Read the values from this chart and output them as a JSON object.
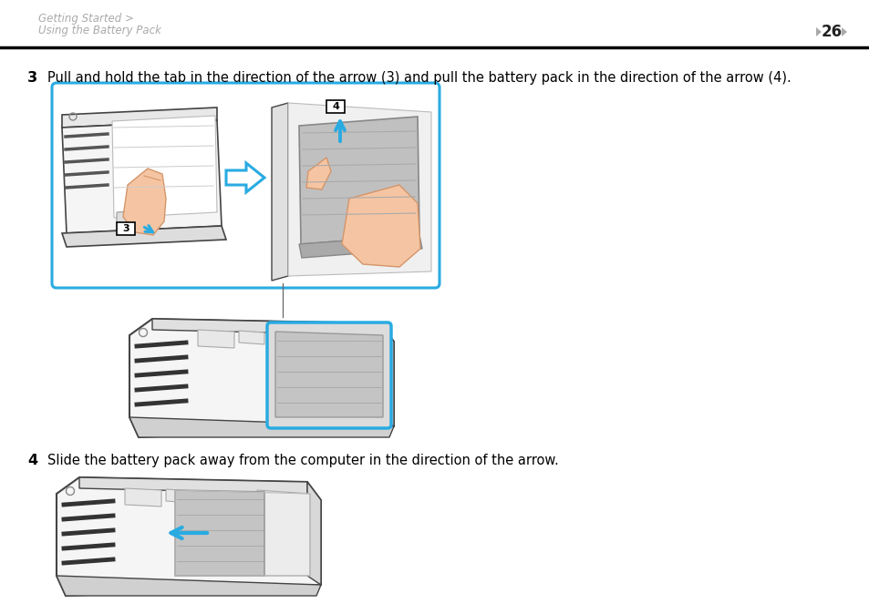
{
  "bg_color": "#ffffff",
  "header_line1": "Getting Started >",
  "header_line2": "Using the Battery Pack",
  "header_color": "#aaaaaa",
  "page_number": "26",
  "divider_color": "#000000",
  "step3_num": "3",
  "step3_text": "Pull and hold the tab in the direction of the arrow (3) and pull the battery pack in the direction of the arrow (4).",
  "step4_num": "4",
  "step4_text": "Slide the battery pack away from the computer in the direction of the arrow.",
  "text_color": "#000000",
  "text_fontsize": 10.5,
  "header_fontsize": 8.5,
  "cyan": "#29abe2",
  "finger": "#f5c5a3",
  "finger_edge": "#d4956a",
  "laptop_fill": "#f5f5f5",
  "laptop_edge": "#444444",
  "battery_fill": "#c8c8c8",
  "battery_edge": "#777777",
  "vent_color": "#333333",
  "gray_line": "#999999"
}
